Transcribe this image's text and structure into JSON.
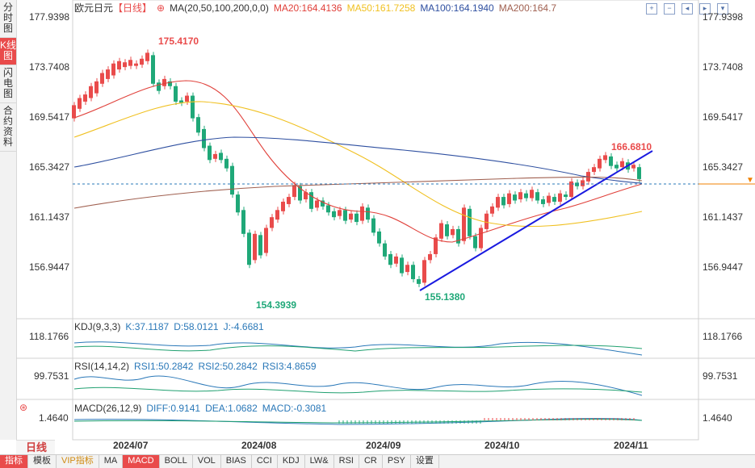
{
  "left_tabs": [
    {
      "label": "分时图",
      "active": false
    },
    {
      "label": "K线图",
      "active": true
    },
    {
      "label": "闪电图",
      "active": false
    },
    {
      "label": "合约资料",
      "active": false
    }
  ],
  "header": {
    "symbol": "欧元日元",
    "period_tag": "【日线】",
    "ma_label": "MA(20,50,100,200,0,0)",
    "ma20": "MA20:164.4136",
    "ma50": "MA50:161.7258",
    "ma100": "MA100:164.1940",
    "ma200": "MA200:164.7"
  },
  "colors": {
    "ma20": "#e0403a",
    "ma50": "#f0c020",
    "ma100": "#2e4fa0",
    "ma200": "#a06050",
    "up": "#e94b4b",
    "down": "#1fa878",
    "trend": "#1a1ae0",
    "price_line": "#f08000"
  },
  "price_axis": {
    "left": [
      "177.9398",
      "173.7408",
      "169.5417",
      "165.3427",
      "161.1437",
      "156.9447"
    ],
    "right": [
      "177.9398",
      "173.7408",
      "169.5417",
      "165.3427",
      "161.1437",
      "156.9447"
    ]
  },
  "annotations": {
    "high": "175.4170",
    "low1": "154.3939",
    "low2": "155.1380",
    "recent_high": "166.6810"
  },
  "kdj": {
    "label": "KDJ(9,3,3)",
    "k": "K:37.1187",
    "d": "D:58.0121",
    "j": "J:-4.6681",
    "axis": "118.1766"
  },
  "rsi": {
    "label": "RSI(14,14,2)",
    "rsi1": "RSI1:50.2842",
    "rsi2": "RSI2:50.2842",
    "rsi3": "RSI3:4.8659",
    "axis": "99.7531"
  },
  "macd": {
    "label": "MACD(26,12,9)",
    "diff": "DIFF:0.9141",
    "dea": "DEA:1.0682",
    "macd": "MACD:-0.3081",
    "axis": "1.4640"
  },
  "x_axis": [
    "2024/07",
    "2024/08",
    "2024/09",
    "2024/10",
    "2024/11"
  ],
  "period_button": "日线",
  "bottom_tabs": [
    "指标",
    "模板",
    "VIP指标",
    "MA",
    "MACD",
    "BOLL",
    "VOL",
    "BIAS",
    "CCI",
    "KDJ",
    "LW&",
    "RSI",
    "CR",
    "PSY",
    "设置"
  ]
}
